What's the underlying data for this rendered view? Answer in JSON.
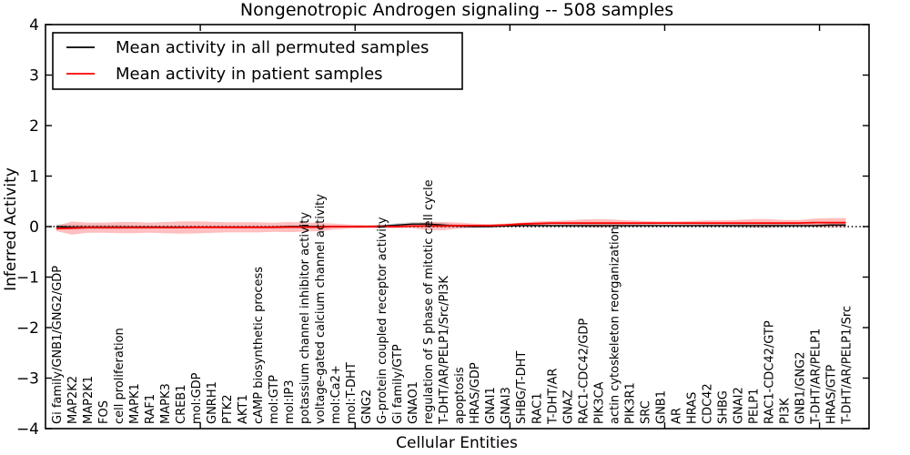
{
  "title": "Nongenotropic Androgen signaling -- 508 samples",
  "axes": {
    "ylabel": "Inferred Activity",
    "xlabel": "Cellular Entities",
    "ytick_labels": [
      "4",
      "3",
      "2",
      "1",
      "0",
      "−1",
      "−2",
      "−3",
      "−4"
    ],
    "ytick_values": [
      4,
      3,
      2,
      1,
      0,
      -1,
      -2,
      -3,
      -4
    ],
    "xtick_values": [
      10,
      20,
      30,
      40,
      50
    ]
  },
  "legend": {
    "entries": [
      {
        "label": "Mean activity in all permuted samples",
        "color": "#000000"
      },
      {
        "label": "Mean activity in patient samples",
        "color": "#ff0000"
      }
    ]
  },
  "chart_data": {
    "type": "line",
    "title": "Nongenotropic Androgen signaling -- 508 samples",
    "xlabel": "Cellular Entities",
    "ylabel": "Inferred Activity",
    "ylim": [
      -4,
      4
    ],
    "grid": false,
    "baseline": 0,
    "baseline_style": "dotted",
    "legend_position": "upper left",
    "categories": [
      "Gi family/GNB1/GNG2/GDP",
      "MAP2K2",
      "MAP2K1",
      "FOS",
      "cell proliferation",
      "MAPK1",
      "RAF1",
      "MAPK3",
      "CREB1",
      "mol:GDP",
      "GNRH1",
      "PTK2",
      "AKT1",
      "cAMP biosynthetic process",
      "mol:GTP",
      "mol:IP3",
      "potassium channel inhibitor activity",
      "voltage-gated calcium channel activity",
      "mol:Ca2+",
      "mol:T-DHT",
      "GNG2",
      "G-protein coupled receptor activity",
      "Gi family/GTP",
      "GNAO1",
      "regulation of S phase of mitotic cell cycle",
      "T-DHT/AR/PELP1/Src/PI3K",
      "apoptosis",
      "HRAS/GDP",
      "GNAI1",
      "GNAI3",
      "SHBG/T-DHT",
      "RAC1",
      "T-DHT/AR",
      "GNAZ",
      "RAC1-CDC42/GDP",
      "PIK3CA",
      "actin cytoskeleton reorganization",
      "PIK3R1",
      "SRC",
      "GNB1",
      "AR",
      "HRAS",
      "CDC42",
      "SHBG",
      "GNAI2",
      "PELP1",
      "RAC1-CDC42/GTP",
      "PI3K",
      "GNB1/GNG2",
      "T-DHT/AR/PELP1",
      "HRAS/GTP",
      "T-DHT/AR/PELP1/Src"
    ],
    "series": [
      {
        "name": "Mean activity in all permuted samples",
        "color": "#000000",
        "band_opacity": 0.14,
        "values": [
          0,
          -0.01,
          -0.01,
          -0.01,
          -0.01,
          -0.01,
          -0.01,
          -0.01,
          -0.01,
          -0.01,
          -0.01,
          -0.01,
          -0.01,
          -0.01,
          -0.01,
          0,
          0,
          0,
          0,
          0,
          0,
          0.01,
          0.03,
          0.05,
          0.05,
          0.03,
          0.01,
          0,
          0,
          0.01,
          0.02,
          0.02,
          0.02,
          0.02,
          0.02,
          0.02,
          0.02,
          0.02,
          0.02,
          0.02,
          0.02,
          0.02,
          0.02,
          0.02,
          0.02,
          0.02,
          0.02,
          0.02,
          0.02,
          0.02,
          0.03,
          0.03
        ],
        "band": [
          0.05,
          0.05,
          0.04,
          0.04,
          0.04,
          0.03,
          0.03,
          0.02,
          0.02,
          0.02,
          0.02,
          0.02,
          0.02,
          0.02,
          0.02,
          0.02,
          0.02,
          0.02,
          0.01,
          0.01,
          0.01,
          0.02,
          0.04,
          0.04,
          0.04,
          0.04,
          0.03,
          0.02,
          0.01,
          0.01,
          0.02,
          0.02,
          0.02,
          0.03,
          0.04,
          0.04,
          0.04,
          0.03,
          0.02,
          0.02,
          0.02,
          0.02,
          0.03,
          0.03,
          0.04,
          0.05,
          0.05,
          0.04,
          0.03,
          0.03,
          0.04,
          0.04
        ]
      },
      {
        "name": "Mean activity in patient samples",
        "color": "#ff0000",
        "band_opacity": 0.25,
        "values": [
          -0.04,
          -0.03,
          -0.02,
          -0.02,
          -0.02,
          -0.02,
          -0.02,
          -0.02,
          -0.02,
          -0.015,
          -0.015,
          -0.015,
          -0.015,
          -0.015,
          -0.015,
          -0.01,
          -0.01,
          -0.01,
          0,
          0,
          0,
          0,
          0,
          0.01,
          0.01,
          0.01,
          0.02,
          0.02,
          0.02,
          0.03,
          0.05,
          0.06,
          0.07,
          0.07,
          0.07,
          0.07,
          0.07,
          0.07,
          0.07,
          0.07,
          0.07,
          0.07,
          0.07,
          0.07,
          0.07,
          0.07,
          0.07,
          0.07,
          0.07,
          0.08,
          0.08,
          0.08
        ],
        "band": [
          0.05,
          0.13,
          0.1,
          0.1,
          0.11,
          0.11,
          0.1,
          0.11,
          0.12,
          0.12,
          0.11,
          0.1,
          0.1,
          0.1,
          0.09,
          0.1,
          0.09,
          0.08,
          0.06,
          0.04,
          0.03,
          0.03,
          0.03,
          0.04,
          0.08,
          0.08,
          0.06,
          0.04,
          0.03,
          0.03,
          0.03,
          0.04,
          0.04,
          0.05,
          0.07,
          0.08,
          0.07,
          0.05,
          0.04,
          0.03,
          0.03,
          0.04,
          0.05,
          0.05,
          0.06,
          0.08,
          0.08,
          0.06,
          0.06,
          0.08,
          0.09,
          0.09
        ]
      }
    ]
  }
}
